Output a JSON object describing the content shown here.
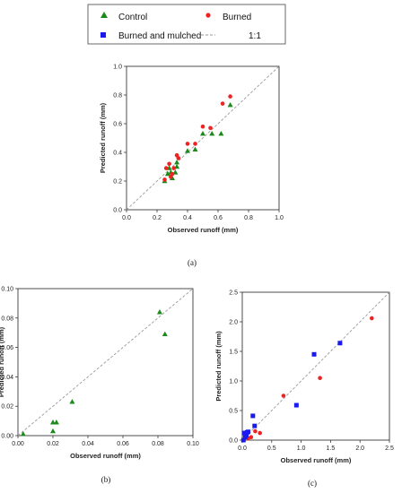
{
  "legend": {
    "items": [
      {
        "name": "Control",
        "marker": "triangle",
        "color": "#1a8a1a"
      },
      {
        "name": "Burned",
        "marker": "circle",
        "color": "#ee2222"
      },
      {
        "name": "Burned and mulched",
        "marker": "square",
        "color": "#1a1aee"
      },
      {
        "name": "1:1",
        "marker": "dashed-line",
        "color": "#9a9a9a"
      }
    ]
  },
  "chart_data": [
    {
      "type": "scatter",
      "panel_label": "(a)",
      "xlabel": "Observed runoff (mm)",
      "ylabel": "Predicted runoff (mm)",
      "xlim": [
        0,
        1.0
      ],
      "ylim": [
        0,
        1.0
      ],
      "xticks": [
        "0.0",
        "0.2",
        "0.4",
        "0.6",
        "0.8",
        "1.0"
      ],
      "yticks": [
        "0.0",
        "0.2",
        "0.4",
        "0.6",
        "0.8",
        "1.0"
      ],
      "reference_line": "1:1",
      "series": [
        {
          "name": "Control",
          "marker": "triangle",
          "color": "#1a8a1a",
          "x": [
            0.25,
            0.27,
            0.28,
            0.29,
            0.3,
            0.32,
            0.33,
            0.33,
            0.4,
            0.45,
            0.5,
            0.56,
            0.62,
            0.68
          ],
          "y": [
            0.2,
            0.25,
            0.29,
            0.26,
            0.22,
            0.26,
            0.33,
            0.3,
            0.41,
            0.42,
            0.53,
            0.53,
            0.53,
            0.73
          ]
        },
        {
          "name": "Burned",
          "marker": "circle",
          "color": "#ee2222",
          "x": [
            0.25,
            0.26,
            0.28,
            0.29,
            0.3,
            0.31,
            0.33,
            0.34,
            0.4,
            0.45,
            0.5,
            0.55,
            0.63,
            0.68
          ],
          "y": [
            0.21,
            0.29,
            0.32,
            0.23,
            0.25,
            0.29,
            0.38,
            0.36,
            0.46,
            0.46,
            0.58,
            0.57,
            0.74,
            0.79
          ]
        }
      ]
    },
    {
      "type": "scatter",
      "panel_label": "(b)",
      "xlabel": "Observed runoff (mm)",
      "ylabel": "Predicted runoff (mm)",
      "xlim": [
        0,
        0.1
      ],
      "ylim": [
        0,
        0.1
      ],
      "xticks": [
        "0.00",
        "0.02",
        "0.04",
        "0.06",
        "0.08",
        "0.10"
      ],
      "yticks": [
        "0.00",
        "0.02",
        "0.04",
        "0.06",
        "0.08",
        "0.10"
      ],
      "reference_line": "1:1",
      "series": [
        {
          "name": "Control",
          "marker": "triangle",
          "color": "#1a8a1a",
          "x": [
            0.003,
            0.02,
            0.02,
            0.022,
            0.031,
            0.081,
            0.084
          ],
          "y": [
            0.001,
            0.003,
            0.009,
            0.009,
            0.023,
            0.084,
            0.069
          ]
        }
      ]
    },
    {
      "type": "scatter",
      "panel_label": "(c)",
      "xlabel": "Observed runoff (mm)",
      "ylabel": "Predicted runoff (mm)",
      "xlim": [
        0,
        2.5
      ],
      "ylim": [
        0,
        2.5
      ],
      "xticks": [
        "0.0",
        "0.5",
        "1.0",
        "1.5",
        "2.0",
        "2.5"
      ],
      "yticks": [
        "0.0",
        "0.5",
        "1.0",
        "1.5",
        "2.0",
        "2.5"
      ],
      "reference_line": "1:1",
      "series": [
        {
          "name": "Burned",
          "marker": "circle",
          "color": "#ee2222",
          "x": [
            0.1,
            0.15,
            0.22,
            0.3,
            0.7,
            1.32,
            2.2
          ],
          "y": [
            0.03,
            0.05,
            0.15,
            0.12,
            0.75,
            1.05,
            2.06
          ]
        },
        {
          "name": "Burned and mulched",
          "marker": "square",
          "color": "#1a1aee",
          "x": [
            0.02,
            0.03,
            0.05,
            0.07,
            0.08,
            0.1,
            0.18,
            0.21,
            0.92,
            1.22,
            1.66
          ],
          "y": [
            0.0,
            0.12,
            0.05,
            0.08,
            0.13,
            0.14,
            0.41,
            0.24,
            0.59,
            1.45,
            1.64
          ]
        }
      ]
    }
  ]
}
